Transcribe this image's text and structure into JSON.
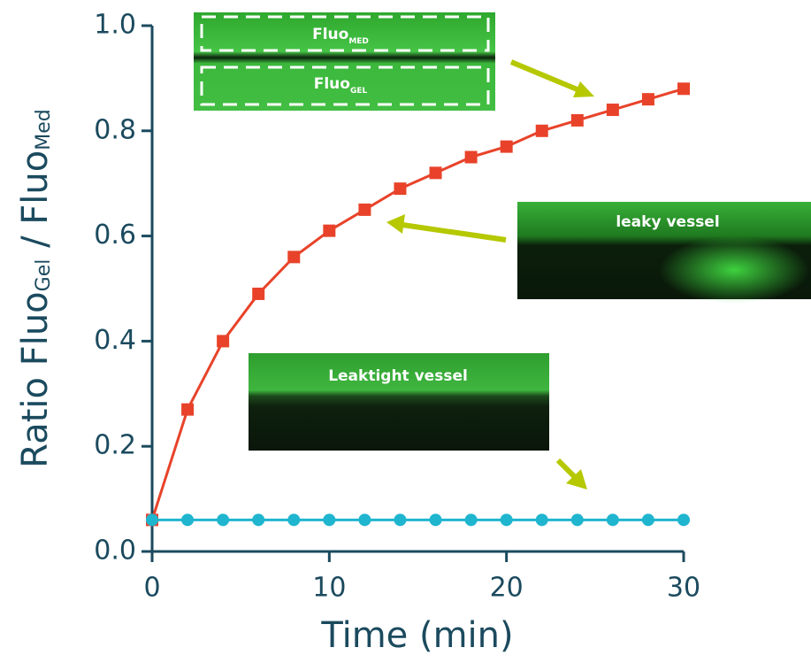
{
  "chart_data": {
    "type": "line",
    "x_label": "Time (min)",
    "y_label": {
      "text": "Ratio Fluo",
      "sub1": "Gel",
      "mid": " / Fluo",
      "sub2": "Med"
    },
    "x": [
      0,
      2,
      4,
      6,
      8,
      10,
      12,
      14,
      16,
      18,
      20,
      22,
      24,
      26,
      28,
      30
    ],
    "series": [
      {
        "color": "#e8432a",
        "marker": "square",
        "values": [
          0.06,
          0.27,
          0.4,
          0.49,
          0.56,
          0.61,
          0.65,
          0.69,
          0.72,
          0.75,
          0.77,
          0.8,
          0.82,
          0.84,
          0.86,
          0.88
        ]
      },
      {
        "color": "#1fb5cf",
        "marker": "circle",
        "values": [
          0.06,
          0.06,
          0.06,
          0.06,
          0.06,
          0.06,
          0.06,
          0.06,
          0.06,
          0.06,
          0.06,
          0.06,
          0.06,
          0.06,
          0.06,
          0.06
        ]
      }
    ],
    "xlim": [
      0,
      30
    ],
    "xticks": [
      0,
      10,
      20,
      30
    ],
    "ylim": [
      0,
      1
    ],
    "yticks": [
      {
        "value": 0,
        "label": "0.0"
      },
      0.2,
      0.4,
      0.6,
      0.8,
      {
        "value": 1,
        "label": "1.0"
      }
    ],
    "grid": false,
    "insets": {
      "fluo": "Fluo",
      "med": "MED",
      "gel": "GEL",
      "leaky": "leaky vessel",
      "leaktight": "Leaktight vessel"
    }
  }
}
